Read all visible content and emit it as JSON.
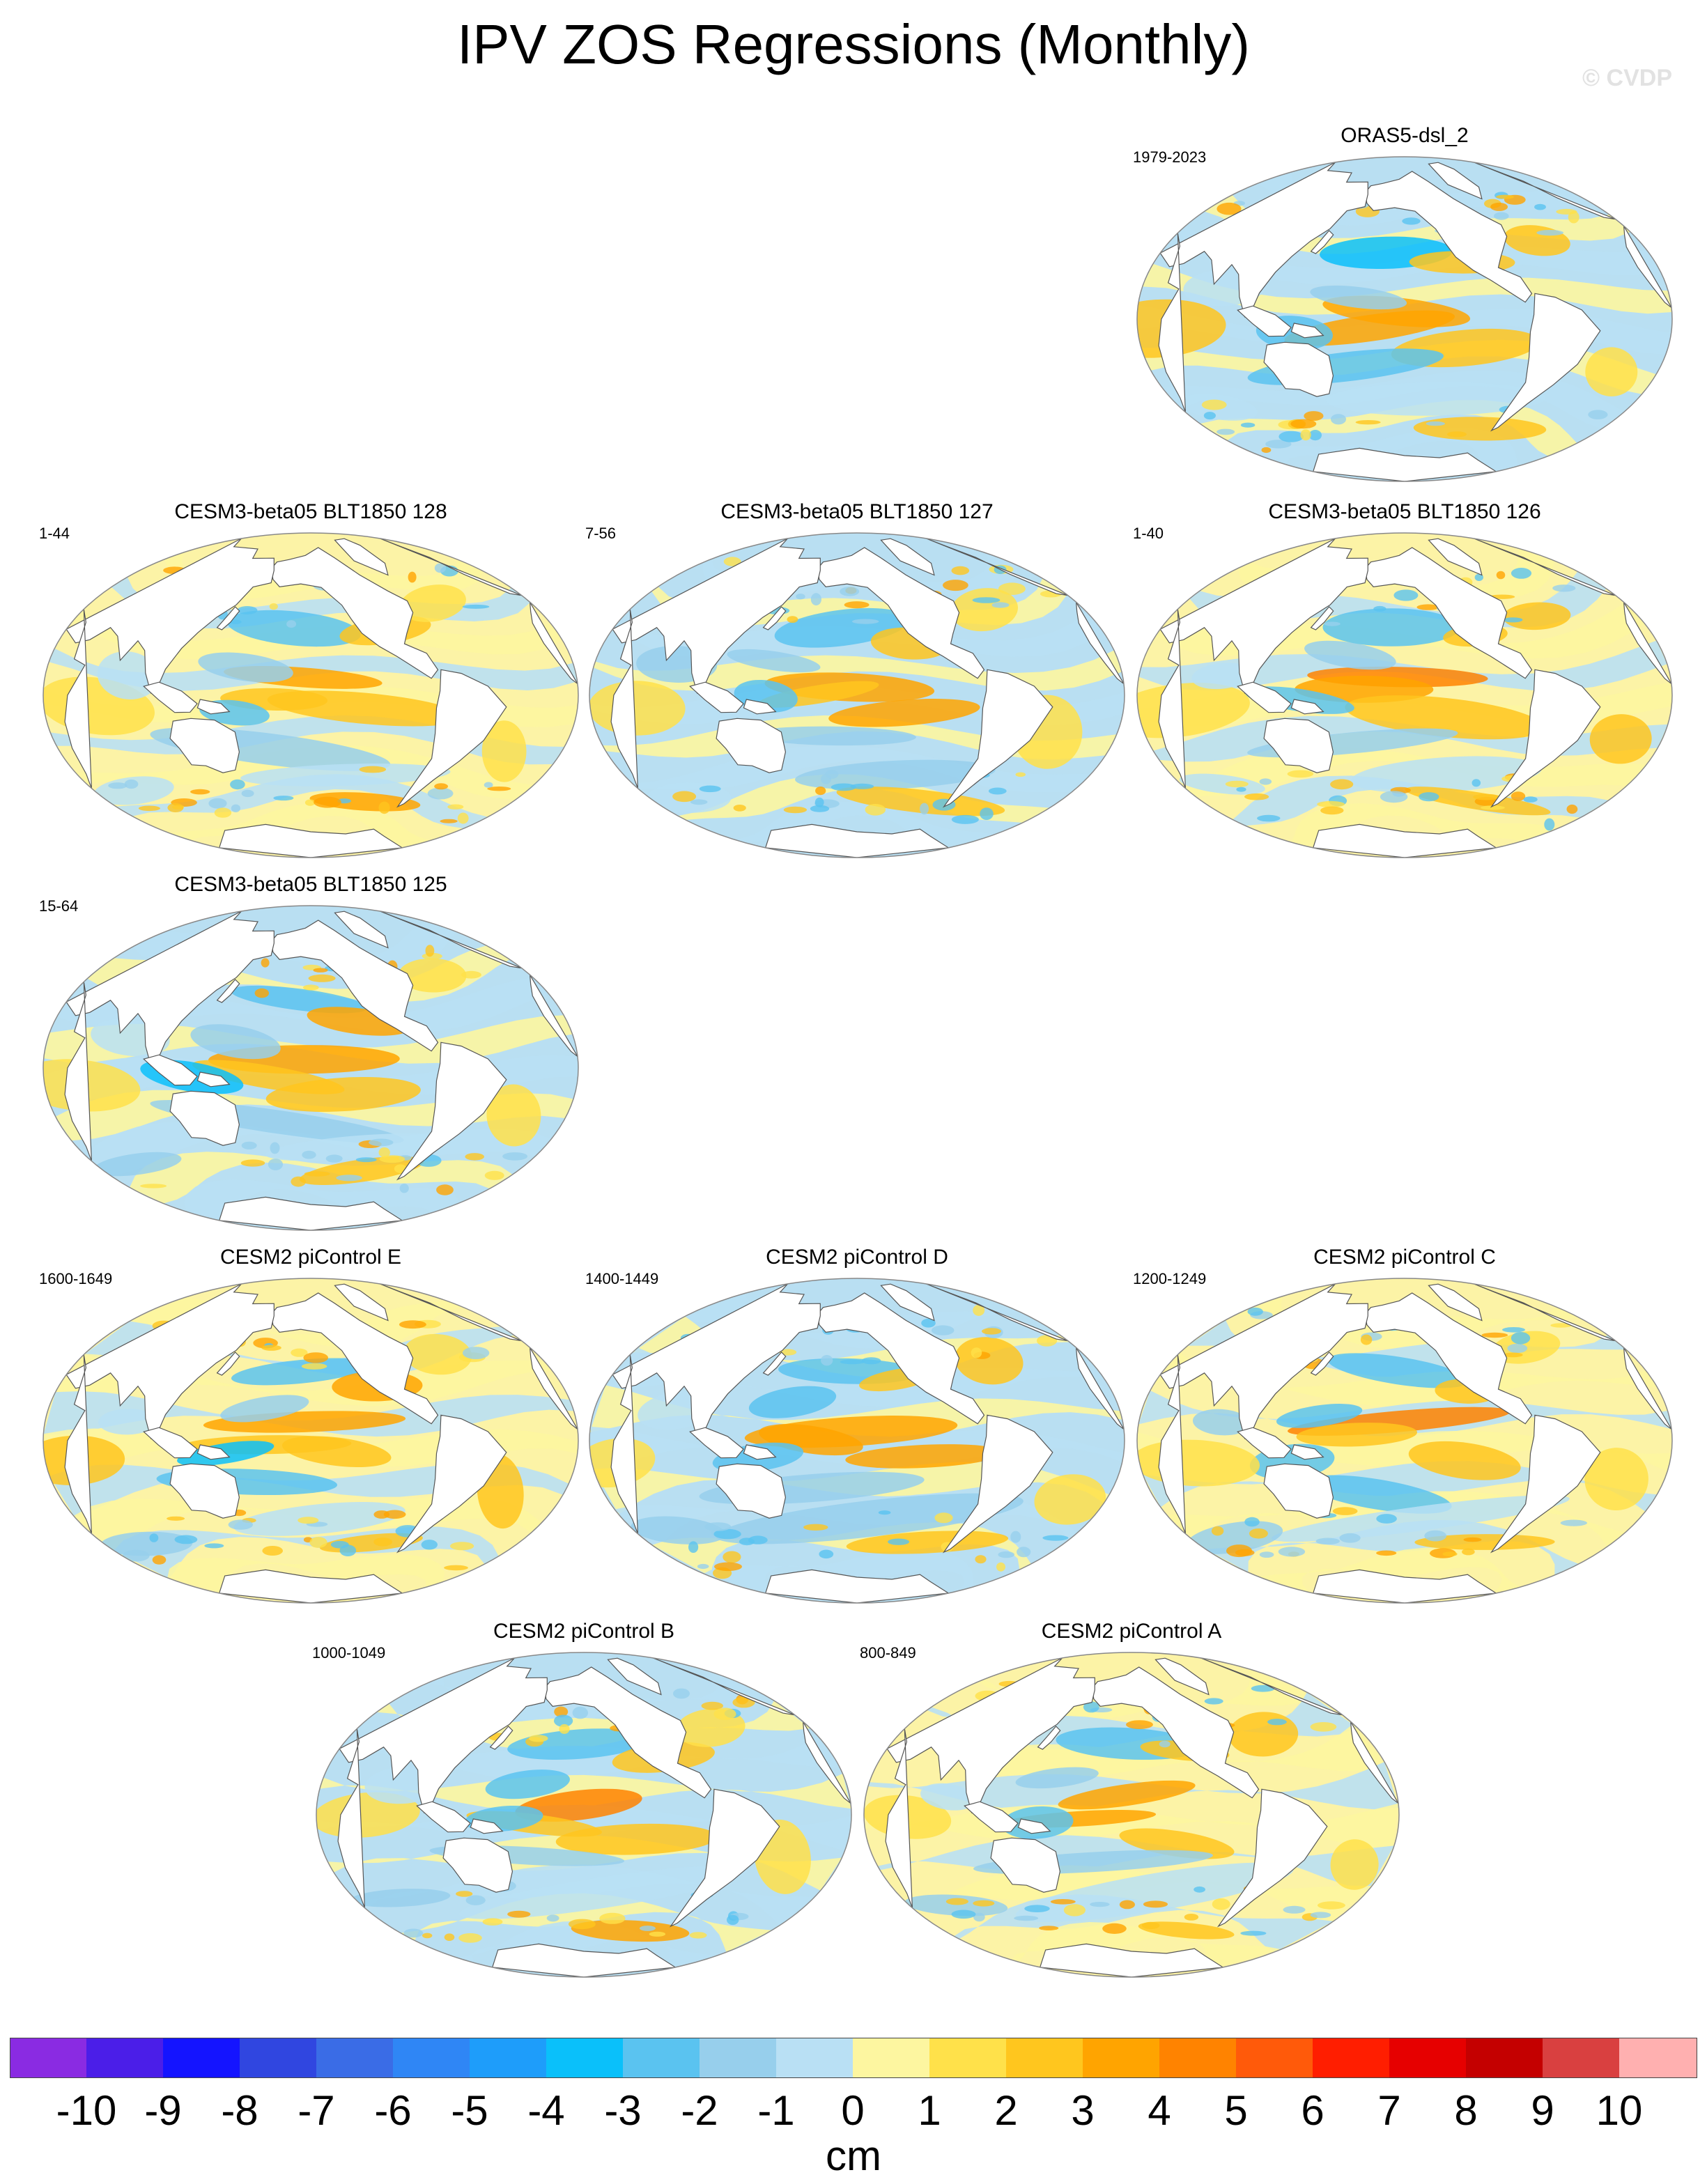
{
  "title": "IPV ZOS Regressions (Monthly)",
  "watermark": "© CVDP",
  "panels": [
    {
      "title": "ORAS5-dsl_2",
      "period": "1979-2023"
    },
    {
      "title": "CESM3-beta05 BLT1850 128",
      "period": "1-44"
    },
    {
      "title": "CESM3-beta05 BLT1850 127",
      "period": "7-56"
    },
    {
      "title": "CESM3-beta05 BLT1850 126",
      "period": "1-40"
    },
    {
      "title": "CESM3-beta05 BLT1850 125",
      "period": "15-64"
    },
    {
      "title": "CESM2 piControl E",
      "period": "1600-1649"
    },
    {
      "title": "CESM2 piControl D",
      "period": "1400-1449"
    },
    {
      "title": "CESM2 piControl C",
      "period": "1200-1249"
    },
    {
      "title": "CESM2 piControl B",
      "period": "1000-1049"
    },
    {
      "title": "CESM2 piControl A",
      "period": "800-849"
    }
  ],
  "colorbar": {
    "units": "cm",
    "ticks": [
      "-10",
      "-9",
      "-8",
      "-7",
      "-6",
      "-5",
      "-4",
      "-3",
      "-2",
      "-1",
      "0",
      "1",
      "2",
      "3",
      "4",
      "5",
      "6",
      "7",
      "8",
      "9",
      "10"
    ],
    "colors": [
      "#8a2be2",
      "#4b1ee8",
      "#1414ff",
      "#3046e0",
      "#3a6ce6",
      "#2f86f5",
      "#1e9dfa",
      "#0ac0fa",
      "#5ac3f0",
      "#97cfec",
      "#b9e0f4",
      "#fdf6a0",
      "#ffe14a",
      "#ffc61e",
      "#ffa400",
      "#ff8300",
      "#ff5a0a",
      "#ff1e00",
      "#e60000",
      "#c40000",
      "#d94040",
      "#ffb0b0"
    ]
  }
}
